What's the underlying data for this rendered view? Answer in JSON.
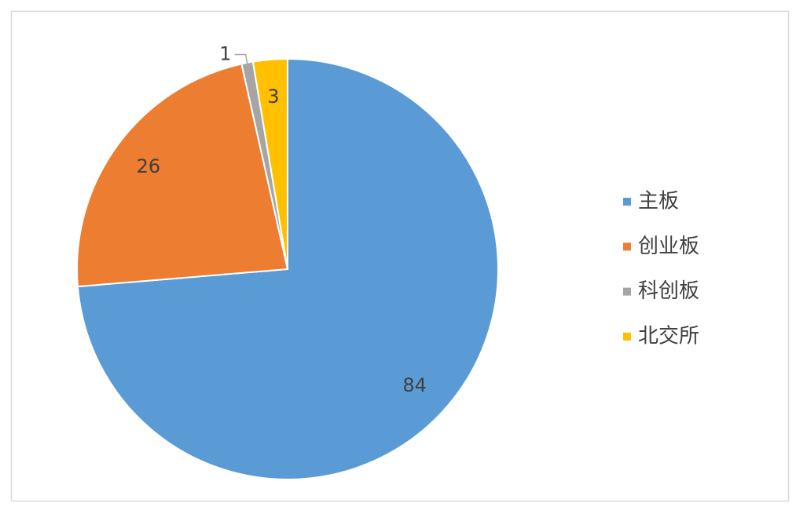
{
  "chart_data": {
    "type": "pie",
    "categories": [
      "主板",
      "创业板",
      "科创板",
      "北交所"
    ],
    "values": [
      84,
      26,
      1,
      3
    ],
    "colors": [
      "#5b9bd5",
      "#ed7d31",
      "#a5a5a5",
      "#ffc000"
    ],
    "legend": "right"
  }
}
